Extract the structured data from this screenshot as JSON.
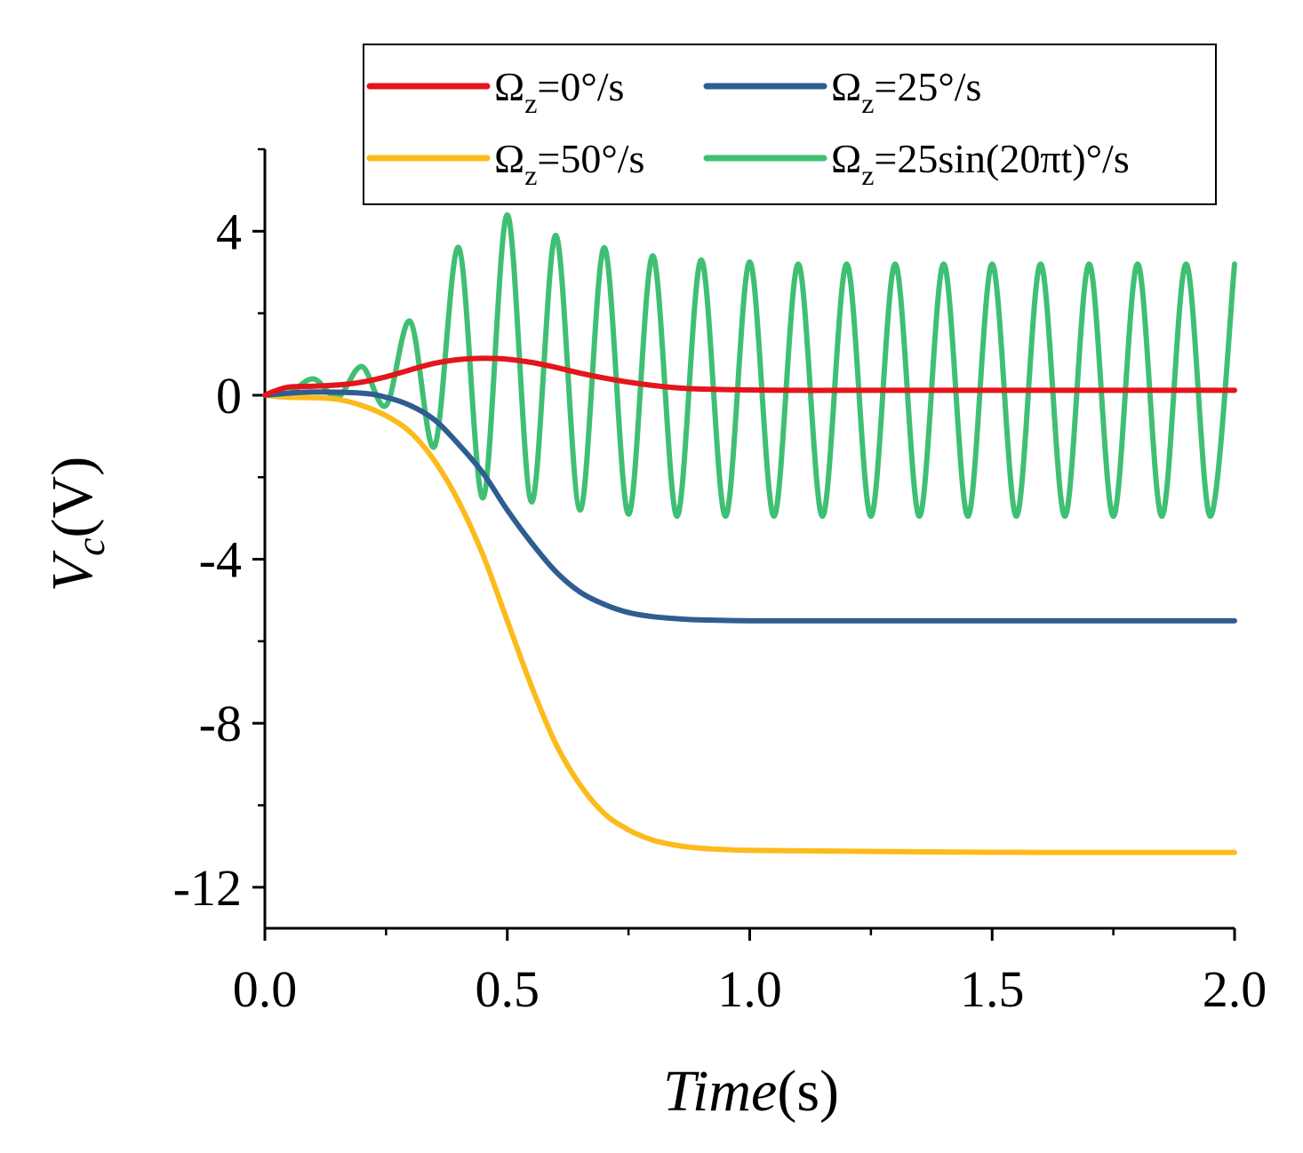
{
  "chart_data": {
    "type": "line",
    "title": "",
    "xlabel": "Time(s)",
    "xlabel_italic": "Time",
    "xlabel_unit": "(s)",
    "ylabel": "Vc(V)",
    "ylabel_main": "V",
    "ylabel_sub": "c",
    "ylabel_unit": "(V)",
    "xlim": [
      0,
      2
    ],
    "ylim": [
      -13,
      6
    ],
    "xticks": [
      0,
      0.5,
      1.0,
      1.5,
      2.0
    ],
    "xtick_labels": [
      "0.0",
      "0.5",
      "1.0",
      "1.5",
      "2.0"
    ],
    "yticks": [
      4,
      0,
      -4,
      -8,
      -12
    ],
    "ytick_labels": [
      "4",
      "0",
      "-4",
      "-8",
      "-12"
    ],
    "grid": false,
    "legend_position": "top-right",
    "series": [
      {
        "name": "Ωz=0°/s",
        "legend_prefix": "Ω",
        "legend_sub": "z",
        "legend_suffix": "=0°/s",
        "color": "#e3161b",
        "x": [
          0,
          0.02,
          0.05,
          0.1,
          0.15,
          0.2,
          0.25,
          0.3,
          0.35,
          0.4,
          0.45,
          0.5,
          0.55,
          0.6,
          0.65,
          0.7,
          0.75,
          0.8,
          0.85,
          0.9,
          1.0,
          1.1,
          1.2,
          1.4,
          1.6,
          1.8,
          2.0
        ],
        "values": [
          0,
          0.1,
          0.2,
          0.22,
          0.25,
          0.32,
          0.45,
          0.62,
          0.78,
          0.87,
          0.9,
          0.88,
          0.8,
          0.68,
          0.54,
          0.42,
          0.32,
          0.24,
          0.18,
          0.15,
          0.13,
          0.12,
          0.12,
          0.12,
          0.12,
          0.12,
          0.12
        ]
      },
      {
        "name": "Ωz=25°/s",
        "legend_prefix": "Ω",
        "legend_sub": "z",
        "legend_suffix": "=25°/s",
        "color": "#2f5d91",
        "x": [
          0,
          0.05,
          0.1,
          0.2,
          0.25,
          0.3,
          0.35,
          0.4,
          0.45,
          0.5,
          0.55,
          0.6,
          0.65,
          0.7,
          0.75,
          0.8,
          0.85,
          0.9,
          1.0,
          1.1,
          1.2,
          1.4,
          1.6,
          1.8,
          2.0
        ],
        "values": [
          0,
          0.05,
          0.08,
          0.05,
          -0.05,
          -0.25,
          -0.6,
          -1.2,
          -1.9,
          -2.8,
          -3.6,
          -4.3,
          -4.8,
          -5.1,
          -5.3,
          -5.4,
          -5.45,
          -5.48,
          -5.5,
          -5.5,
          -5.5,
          -5.5,
          -5.5,
          -5.5,
          -5.5
        ]
      },
      {
        "name": "Ωz=50°/s",
        "legend_prefix": "Ω",
        "legend_sub": "z",
        "legend_suffix": "=50°/s",
        "color": "#fbbb1c",
        "x": [
          0,
          0.05,
          0.1,
          0.15,
          0.2,
          0.25,
          0.3,
          0.35,
          0.4,
          0.45,
          0.5,
          0.55,
          0.6,
          0.65,
          0.7,
          0.75,
          0.8,
          0.85,
          0.9,
          0.95,
          1.0,
          1.2,
          1.4,
          1.6,
          1.8,
          2.0
        ],
        "values": [
          0,
          -0.05,
          -0.06,
          -0.1,
          -0.25,
          -0.5,
          -0.9,
          -1.6,
          -2.6,
          -3.9,
          -5.5,
          -7.1,
          -8.5,
          -9.5,
          -10.2,
          -10.6,
          -10.85,
          -10.98,
          -11.05,
          -11.08,
          -11.1,
          -11.12,
          -11.14,
          -11.15,
          -11.15,
          -11.15
        ]
      },
      {
        "name": "Ωz=25sin(20πt)°/s",
        "legend_prefix": "Ω",
        "legend_sub": "z",
        "legend_suffix": "=25sin(20πt)°/s",
        "color": "#3fbf73",
        "x": [
          0,
          0.05,
          0.1,
          0.15,
          0.2,
          0.25,
          0.3,
          0.35,
          0.4,
          0.45,
          0.5,
          0.55,
          0.6,
          0.65,
          0.7,
          0.75,
          0.8,
          0.85,
          0.9,
          0.95,
          1.0,
          1.05,
          1.1,
          1.15,
          1.2,
          1.25,
          1.3,
          1.35,
          1.4,
          1.45,
          1.5,
          1.55,
          1.6,
          1.65,
          1.7,
          1.75,
          1.8,
          1.85,
          1.9,
          1.95,
          2.0
        ],
        "values": [
          0,
          0.05,
          0.4,
          -0.05,
          0.7,
          -0.25,
          1.8,
          -1.25,
          3.6,
          -2.5,
          4.4,
          -2.6,
          3.9,
          -2.8,
          3.6,
          -2.9,
          3.4,
          -2.95,
          3.3,
          -2.95,
          3.25,
          -2.95,
          3.2,
          -2.95,
          3.2,
          -2.95,
          3.2,
          -2.95,
          3.2,
          -2.95,
          3.2,
          -2.95,
          3.2,
          -2.95,
          3.2,
          -2.95,
          3.2,
          -2.95,
          3.2,
          -2.95,
          3.2
        ]
      }
    ]
  }
}
